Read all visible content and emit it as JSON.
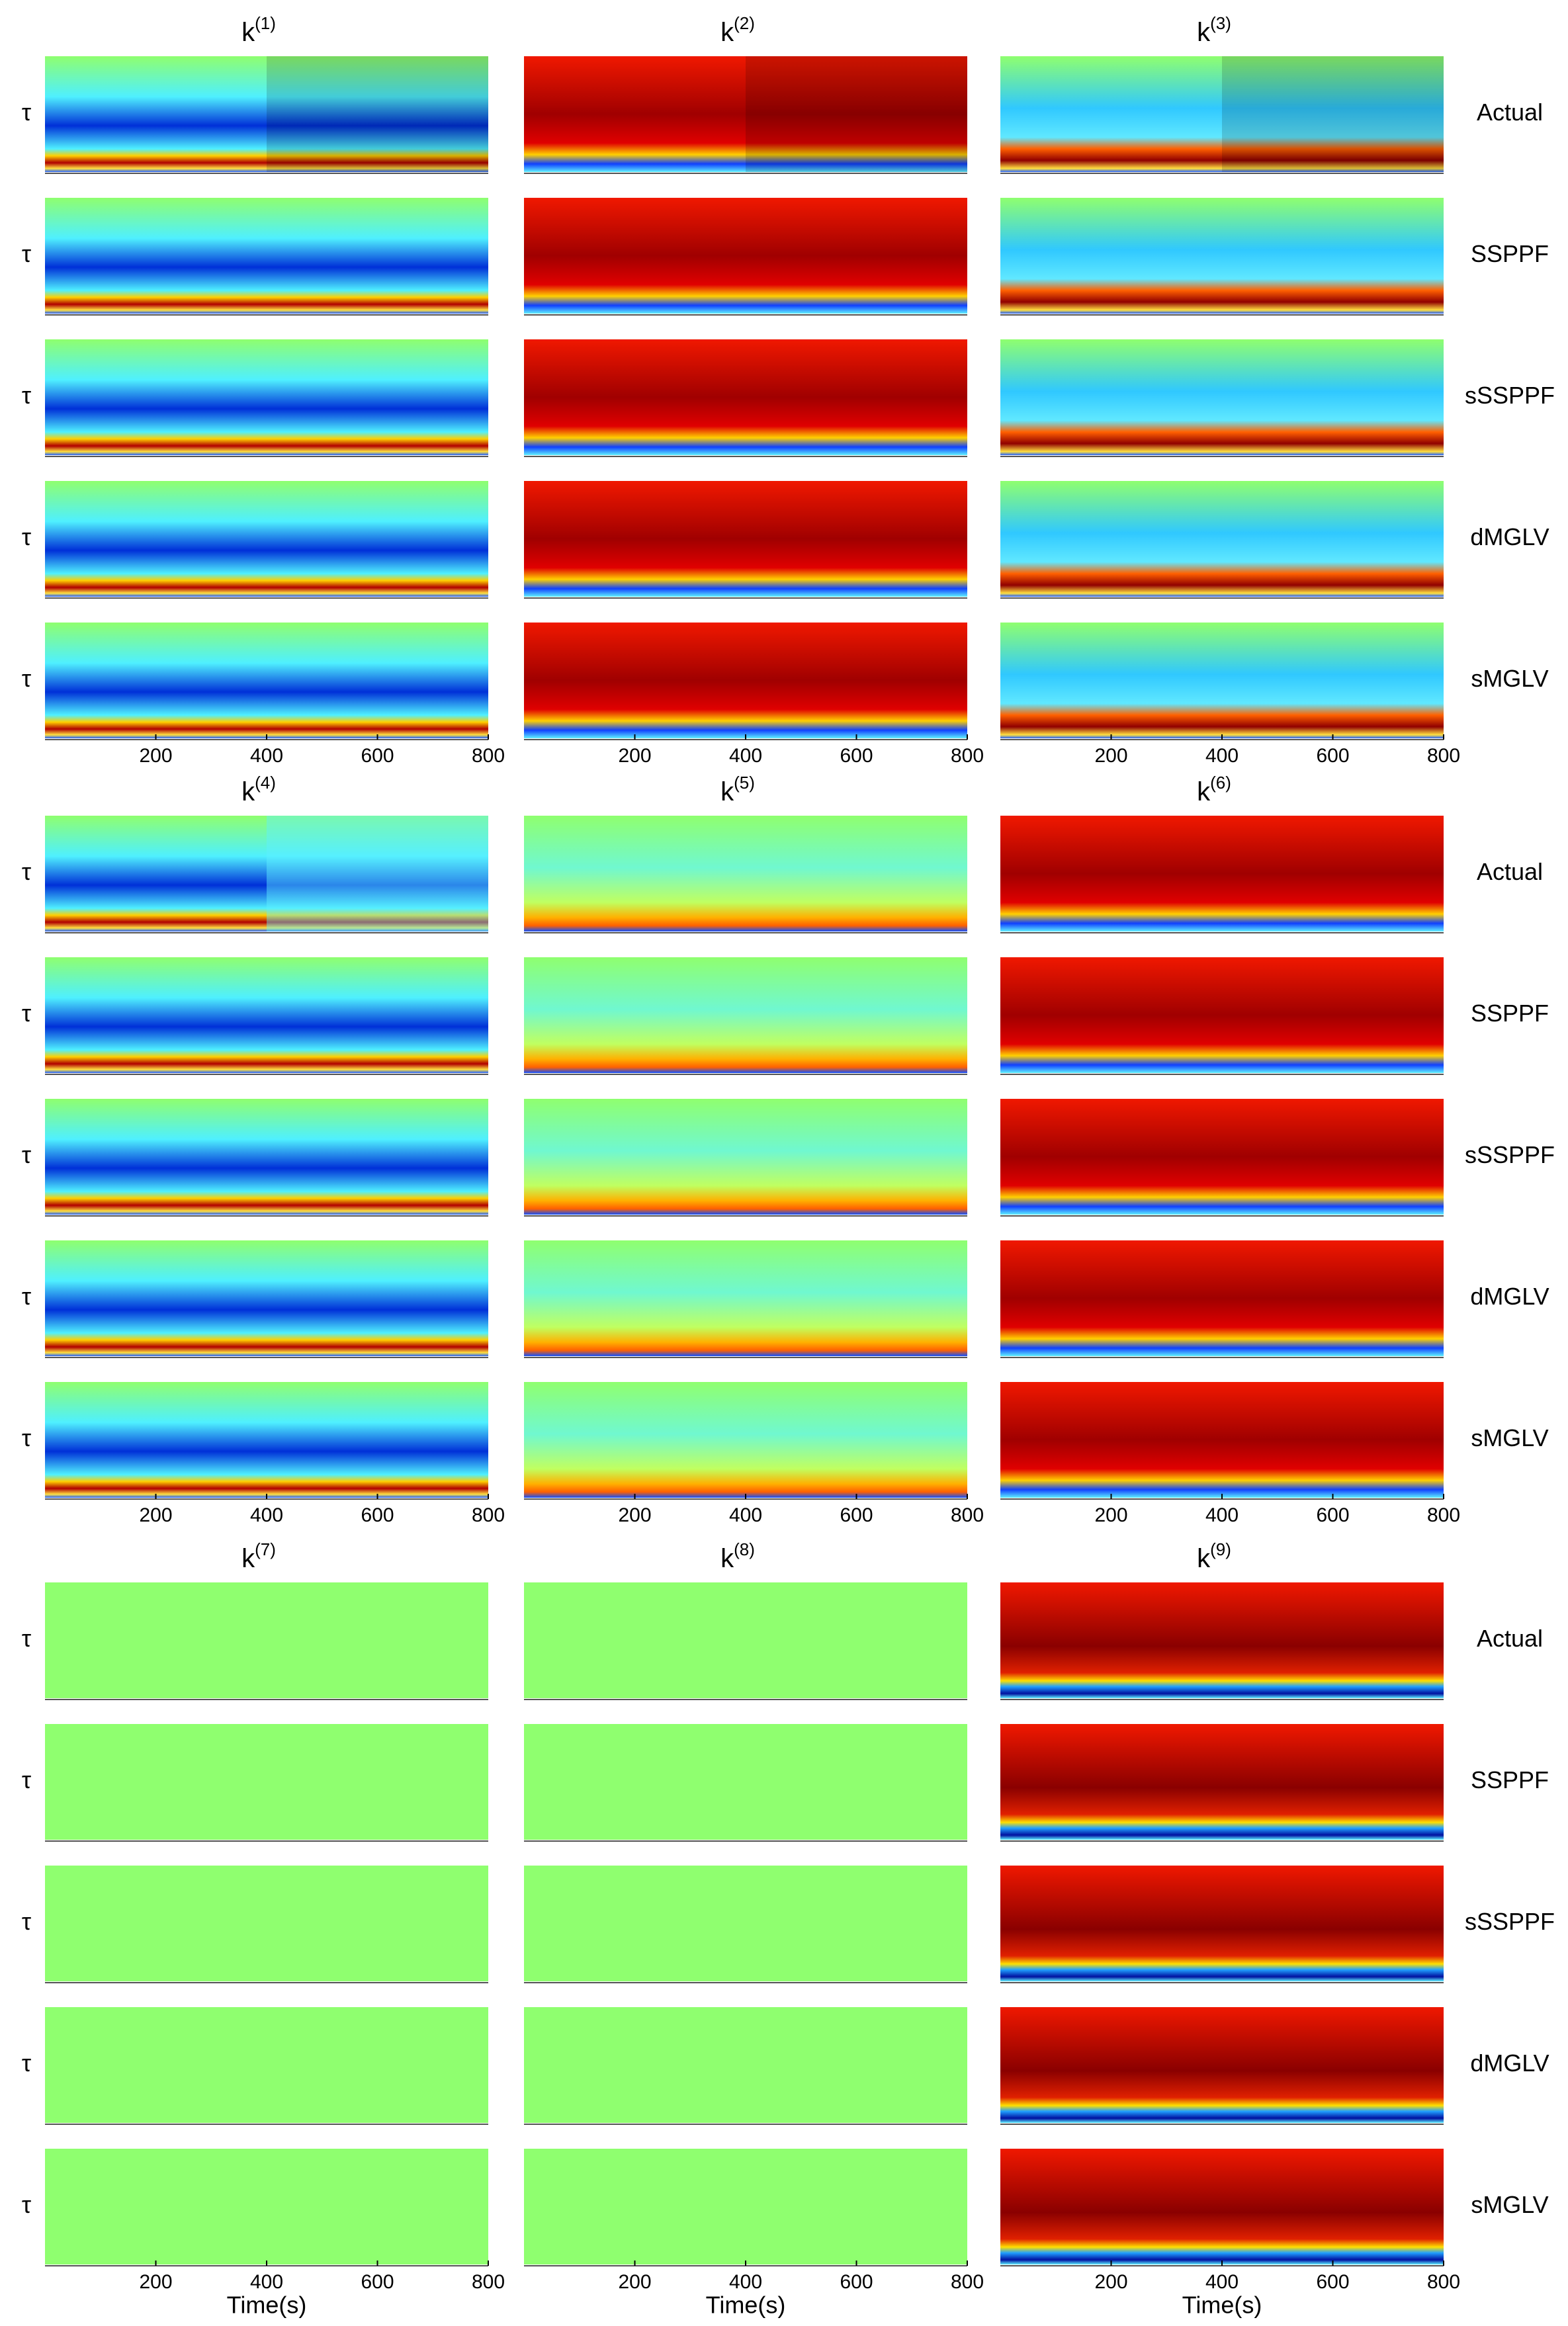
{
  "chart_data": {
    "type": "heatmap",
    "panels": [
      {
        "title": "k",
        "superscript": "(1)"
      },
      {
        "title": "k",
        "superscript": "(2)"
      },
      {
        "title": "k",
        "superscript": "(3)"
      },
      {
        "title": "k",
        "superscript": "(4)"
      },
      {
        "title": "k",
        "superscript": "(5)"
      },
      {
        "title": "k",
        "superscript": "(6)"
      },
      {
        "title": "k",
        "superscript": "(7)"
      },
      {
        "title": "k",
        "superscript": "(8)"
      },
      {
        "title": "k",
        "superscript": "(9)"
      }
    ],
    "row_labels": [
      "Actual",
      "SSPPF",
      "sSSPPF",
      "dMGLV",
      "sMGLV"
    ],
    "y_label": "τ",
    "x_label": "Time(s)",
    "xlim": [
      0,
      800
    ],
    "xticks": [
      200,
      400,
      600,
      800
    ]
  }
}
